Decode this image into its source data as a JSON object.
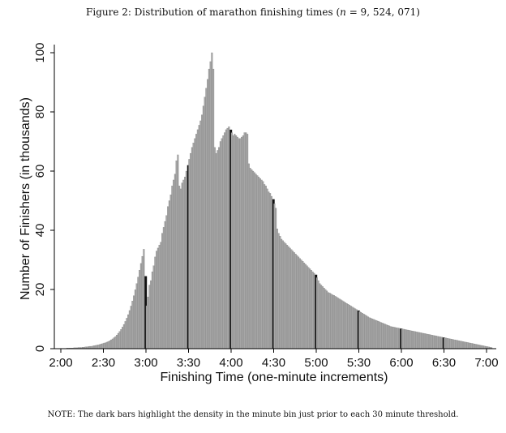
{
  "caption": {
    "prefix": "Figure 2: Distribution of marathon finishing times (",
    "n_symbol": "n",
    "n_value": " = 9, 524, 071)"
  },
  "note": "NOTE: The dark bars highlight the density in the minute bin just prior to each 30 minute threshold.",
  "colors": {
    "bar": "#a6a6a6",
    "bar_outline": "#7f7f7f",
    "highlight": "#111111",
    "axis": "#000000"
  },
  "chart_data": {
    "type": "bar",
    "title": "Figure 2: Distribution of marathon finishing times (n = 9, 524, 071)",
    "xlabel": "Finishing Time (one-minute increments)",
    "ylabel": "Number of Finishers (in thousands)",
    "x_unit": "minutes",
    "xlim": [
      120,
      420
    ],
    "ylim": [
      0,
      100
    ],
    "x_ticks": [
      {
        "minute": 120,
        "label": "2:00"
      },
      {
        "minute": 150,
        "label": "2:30"
      },
      {
        "minute": 180,
        "label": "3:00"
      },
      {
        "minute": 210,
        "label": "3:30"
      },
      {
        "minute": 240,
        "label": "4:00"
      },
      {
        "minute": 270,
        "label": "4:30"
      },
      {
        "minute": 300,
        "label": "5:00"
      },
      {
        "minute": 330,
        "label": "5:30"
      },
      {
        "minute": 360,
        "label": "6:00"
      },
      {
        "minute": 390,
        "label": "6:30"
      },
      {
        "minute": 420,
        "label": "7:00"
      }
    ],
    "y_ticks": [
      0,
      20,
      40,
      60,
      80,
      100
    ],
    "highlighted_bins": [
      179,
      209,
      239,
      269,
      299,
      329,
      359,
      389
    ],
    "bin_start_minute": 120,
    "bin_width_minutes": 1,
    "values": [
      0.1,
      0.1,
      0.1,
      0.1,
      0.2,
      0.2,
      0.2,
      0.2,
      0.2,
      0.3,
      0.3,
      0.3,
      0.4,
      0.4,
      0.4,
      0.5,
      0.5,
      0.6,
      0.6,
      0.7,
      0.8,
      0.8,
      0.9,
      1.0,
      1.1,
      1.2,
      1.3,
      1.4,
      1.6,
      1.7,
      1.9,
      2.0,
      2.2,
      2.4,
      2.7,
      3.0,
      3.3,
      3.7,
      4.1,
      4.6,
      5.2,
      5.8,
      6.5,
      7.3,
      8.2,
      9.2,
      10.3,
      11.5,
      12.9,
      14.4,
      16.1,
      17.9,
      19.9,
      22.0,
      24.2,
      26.5,
      28.8,
      31.2,
      33.6,
      24.5,
      14.5,
      17.5,
      21.5,
      23.0,
      26.0,
      28.0,
      31.0,
      33.0,
      34.0,
      35.0,
      36.0,
      39.0,
      41.0,
      43.0,
      45.0,
      48.0,
      50.0,
      52.0,
      55.0,
      57.0,
      59.0,
      63.5,
      65.5,
      55.0,
      54.0,
      56.0,
      57.0,
      58.0,
      60.0,
      62.0,
      64.0,
      66.0,
      68.0,
      69.5,
      71.0,
      72.5,
      74.0,
      75.5,
      77.0,
      79.0,
      82.0,
      85.0,
      88.0,
      91.0,
      94.5,
      97.0,
      100.0,
      94.5,
      68.0,
      66.0,
      67.0,
      68.0,
      70.0,
      71.0,
      72.0,
      73.0,
      74.0,
      74.5,
      75.0,
      74.0,
      73.0,
      72.0,
      72.5,
      72.0,
      71.5,
      71.0,
      71.0,
      71.5,
      72.0,
      73.0,
      73.0,
      72.5,
      62.5,
      61.0,
      60.5,
      60.0,
      59.5,
      59.0,
      58.5,
      58.0,
      57.5,
      57.0,
      56.5,
      55.5,
      55.0,
      54.0,
      53.0,
      52.5,
      51.5,
      50.5,
      49.0,
      47.5,
      40.5,
      39.0,
      38.0,
      37.0,
      36.5,
      36.0,
      35.5,
      35.0,
      34.5,
      34.0,
      33.5,
      33.0,
      32.5,
      32.0,
      31.5,
      31.0,
      30.5,
      30.0,
      29.5,
      29.0,
      28.5,
      28.0,
      27.5,
      27.0,
      26.5,
      26.0,
      25.5,
      25.0,
      24.0,
      23.0,
      22.0,
      21.5,
      21.0,
      20.5,
      20.0,
      19.5,
      19.0,
      18.8,
      18.5,
      18.2,
      18.0,
      17.7,
      17.4,
      17.1,
      16.8,
      16.5,
      16.2,
      15.9,
      15.6,
      15.3,
      15.0,
      14.7,
      14.4,
      14.1,
      13.8,
      13.5,
      13.2,
      12.9,
      12.6,
      12.3,
      12.0,
      11.7,
      11.4,
      11.1,
      10.8,
      10.5,
      10.3,
      10.1,
      9.9,
      9.7,
      9.5,
      9.3,
      9.1,
      8.9,
      8.7,
      8.5,
      8.3,
      8.1,
      7.9,
      7.7,
      7.5,
      7.4,
      7.3,
      7.2,
      7.1,
      7.0,
      6.9,
      6.8,
      6.7,
      6.6,
      6.5,
      6.4,
      6.3,
      6.2,
      6.1,
      6.0,
      5.9,
      5.8,
      5.7,
      5.6,
      5.5,
      5.4,
      5.3,
      5.2,
      5.1,
      5.0,
      4.9,
      4.8,
      4.7,
      4.6,
      4.5,
      4.4,
      4.3,
      4.2,
      4.1,
      4.0,
      3.9,
      3.8,
      3.7,
      3.6,
      3.5,
      3.4,
      3.3,
      3.2,
      3.1,
      3.0,
      2.9,
      2.8,
      2.7,
      2.6,
      2.5,
      2.4,
      2.3,
      2.2,
      2.1,
      2.0,
      1.9,
      1.8,
      1.7,
      1.6,
      1.5,
      1.4,
      1.3,
      1.2,
      1.1,
      1.0,
      0.9,
      0.8,
      0.7,
      0.6,
      0.5,
      0.4
    ]
  }
}
